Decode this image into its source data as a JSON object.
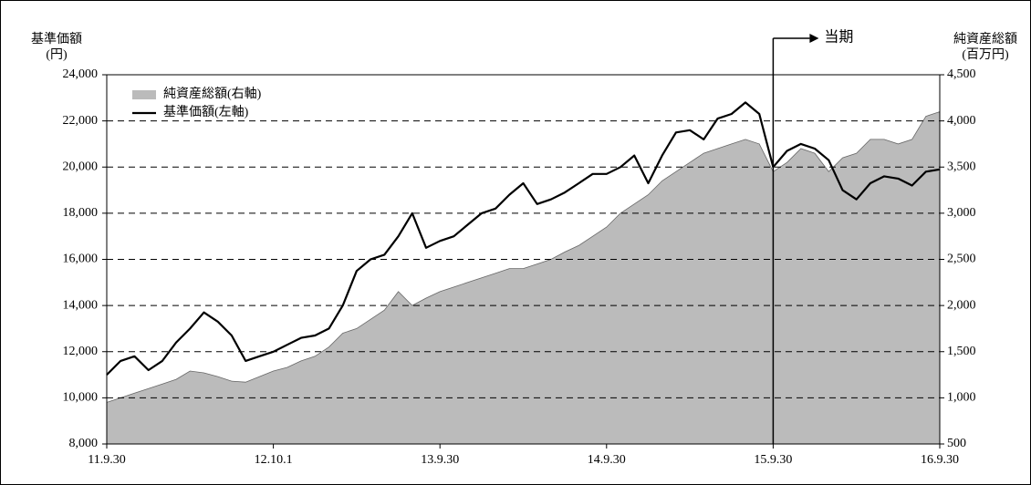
{
  "chart_data": {
    "type": "line",
    "annotation": "当期",
    "ylabel": [
      "基準価額",
      "(円)"
    ],
    "y2label": [
      "純資産総額",
      "(百万円)"
    ],
    "categories": [
      "11.9.30",
      null,
      null,
      null,
      null,
      null,
      null,
      null,
      null,
      null,
      null,
      null,
      "12.10.1",
      null,
      null,
      null,
      null,
      null,
      null,
      null,
      null,
      null,
      null,
      null,
      "13.9.30",
      null,
      null,
      null,
      null,
      null,
      null,
      null,
      null,
      null,
      null,
      null,
      "14.9.30",
      null,
      null,
      null,
      null,
      null,
      null,
      null,
      null,
      null,
      null,
      null,
      "15.9.30",
      null,
      null,
      null,
      null,
      null,
      null,
      null,
      null,
      null,
      null,
      null,
      "16.9.30"
    ],
    "series": [
      {
        "name": "純資産総額(右軸)",
        "color": "#bbbbbb",
        "kind": "area",
        "axis": "y2",
        "values": [
          950,
          1000,
          1050,
          1100,
          1150,
          1200,
          1290,
          1270,
          1230,
          1180,
          1170,
          1230,
          1290,
          1330,
          1400,
          1450,
          1550,
          1700,
          1750,
          1850,
          1950,
          2150,
          2000,
          2080,
          2150,
          2200,
          2250,
          2300,
          2350,
          2400,
          2400,
          2450,
          2500,
          2580,
          2650,
          2750,
          2850,
          3000,
          3100,
          3200,
          3350,
          3450,
          3550,
          3650,
          3700,
          3750,
          3800,
          3750,
          3450,
          3550,
          3700,
          3650,
          3450,
          3600,
          3650,
          3800,
          3800,
          3750,
          3800,
          4050,
          4100
        ]
      },
      {
        "name": "基準価額(左軸)",
        "color": "#000000",
        "kind": "line",
        "values": [
          11000,
          11600,
          11800,
          11200,
          11600,
          12400,
          13000,
          13700,
          13300,
          12700,
          11600,
          11800,
          12000,
          12300,
          12600,
          12700,
          13000,
          14000,
          15500,
          16000,
          16200,
          17000,
          18000,
          16500,
          16800,
          17000,
          17500,
          18000,
          18200,
          18800,
          19300,
          18400,
          18600,
          18900,
          19300,
          19700,
          19700,
          20000,
          20500,
          19300,
          20500,
          21500,
          21600,
          21200,
          22100,
          22300,
          22800,
          22300,
          20000,
          20700,
          21000,
          20800,
          20300,
          19000,
          18600,
          19300,
          19600,
          19500,
          19200,
          19800,
          19900
        ]
      }
    ],
    "ylim": [
      8000,
      24000
    ],
    "yticks": [
      {
        "value": 8000,
        "label": "8,000"
      },
      {
        "value": 10000,
        "label": "10,000"
      },
      {
        "value": 12000,
        "label": "12,000"
      },
      {
        "value": 14000,
        "label": "14,000"
      },
      {
        "value": 16000,
        "label": "16,000"
      },
      {
        "value": 18000,
        "label": "18,000"
      },
      {
        "value": 20000,
        "label": "20,000"
      },
      {
        "value": 22000,
        "label": "22,000"
      },
      {
        "value": 24000,
        "label": "24,000"
      }
    ],
    "y2lim": [
      500,
      4500
    ],
    "y2ticks": [
      500,
      {
        "value": 1000,
        "label": "1,000"
      },
      {
        "value": 1500,
        "label": "1,500"
      },
      {
        "value": 2000,
        "label": "2,000"
      },
      {
        "value": 2500,
        "label": "2,500"
      },
      {
        "value": 3000,
        "label": "3,000"
      },
      {
        "value": 3500,
        "label": "3,500"
      },
      {
        "value": 4000,
        "label": "4,000"
      },
      {
        "value": 4500,
        "label": "4,500"
      }
    ],
    "grid": true,
    "legend": "top-left"
  }
}
